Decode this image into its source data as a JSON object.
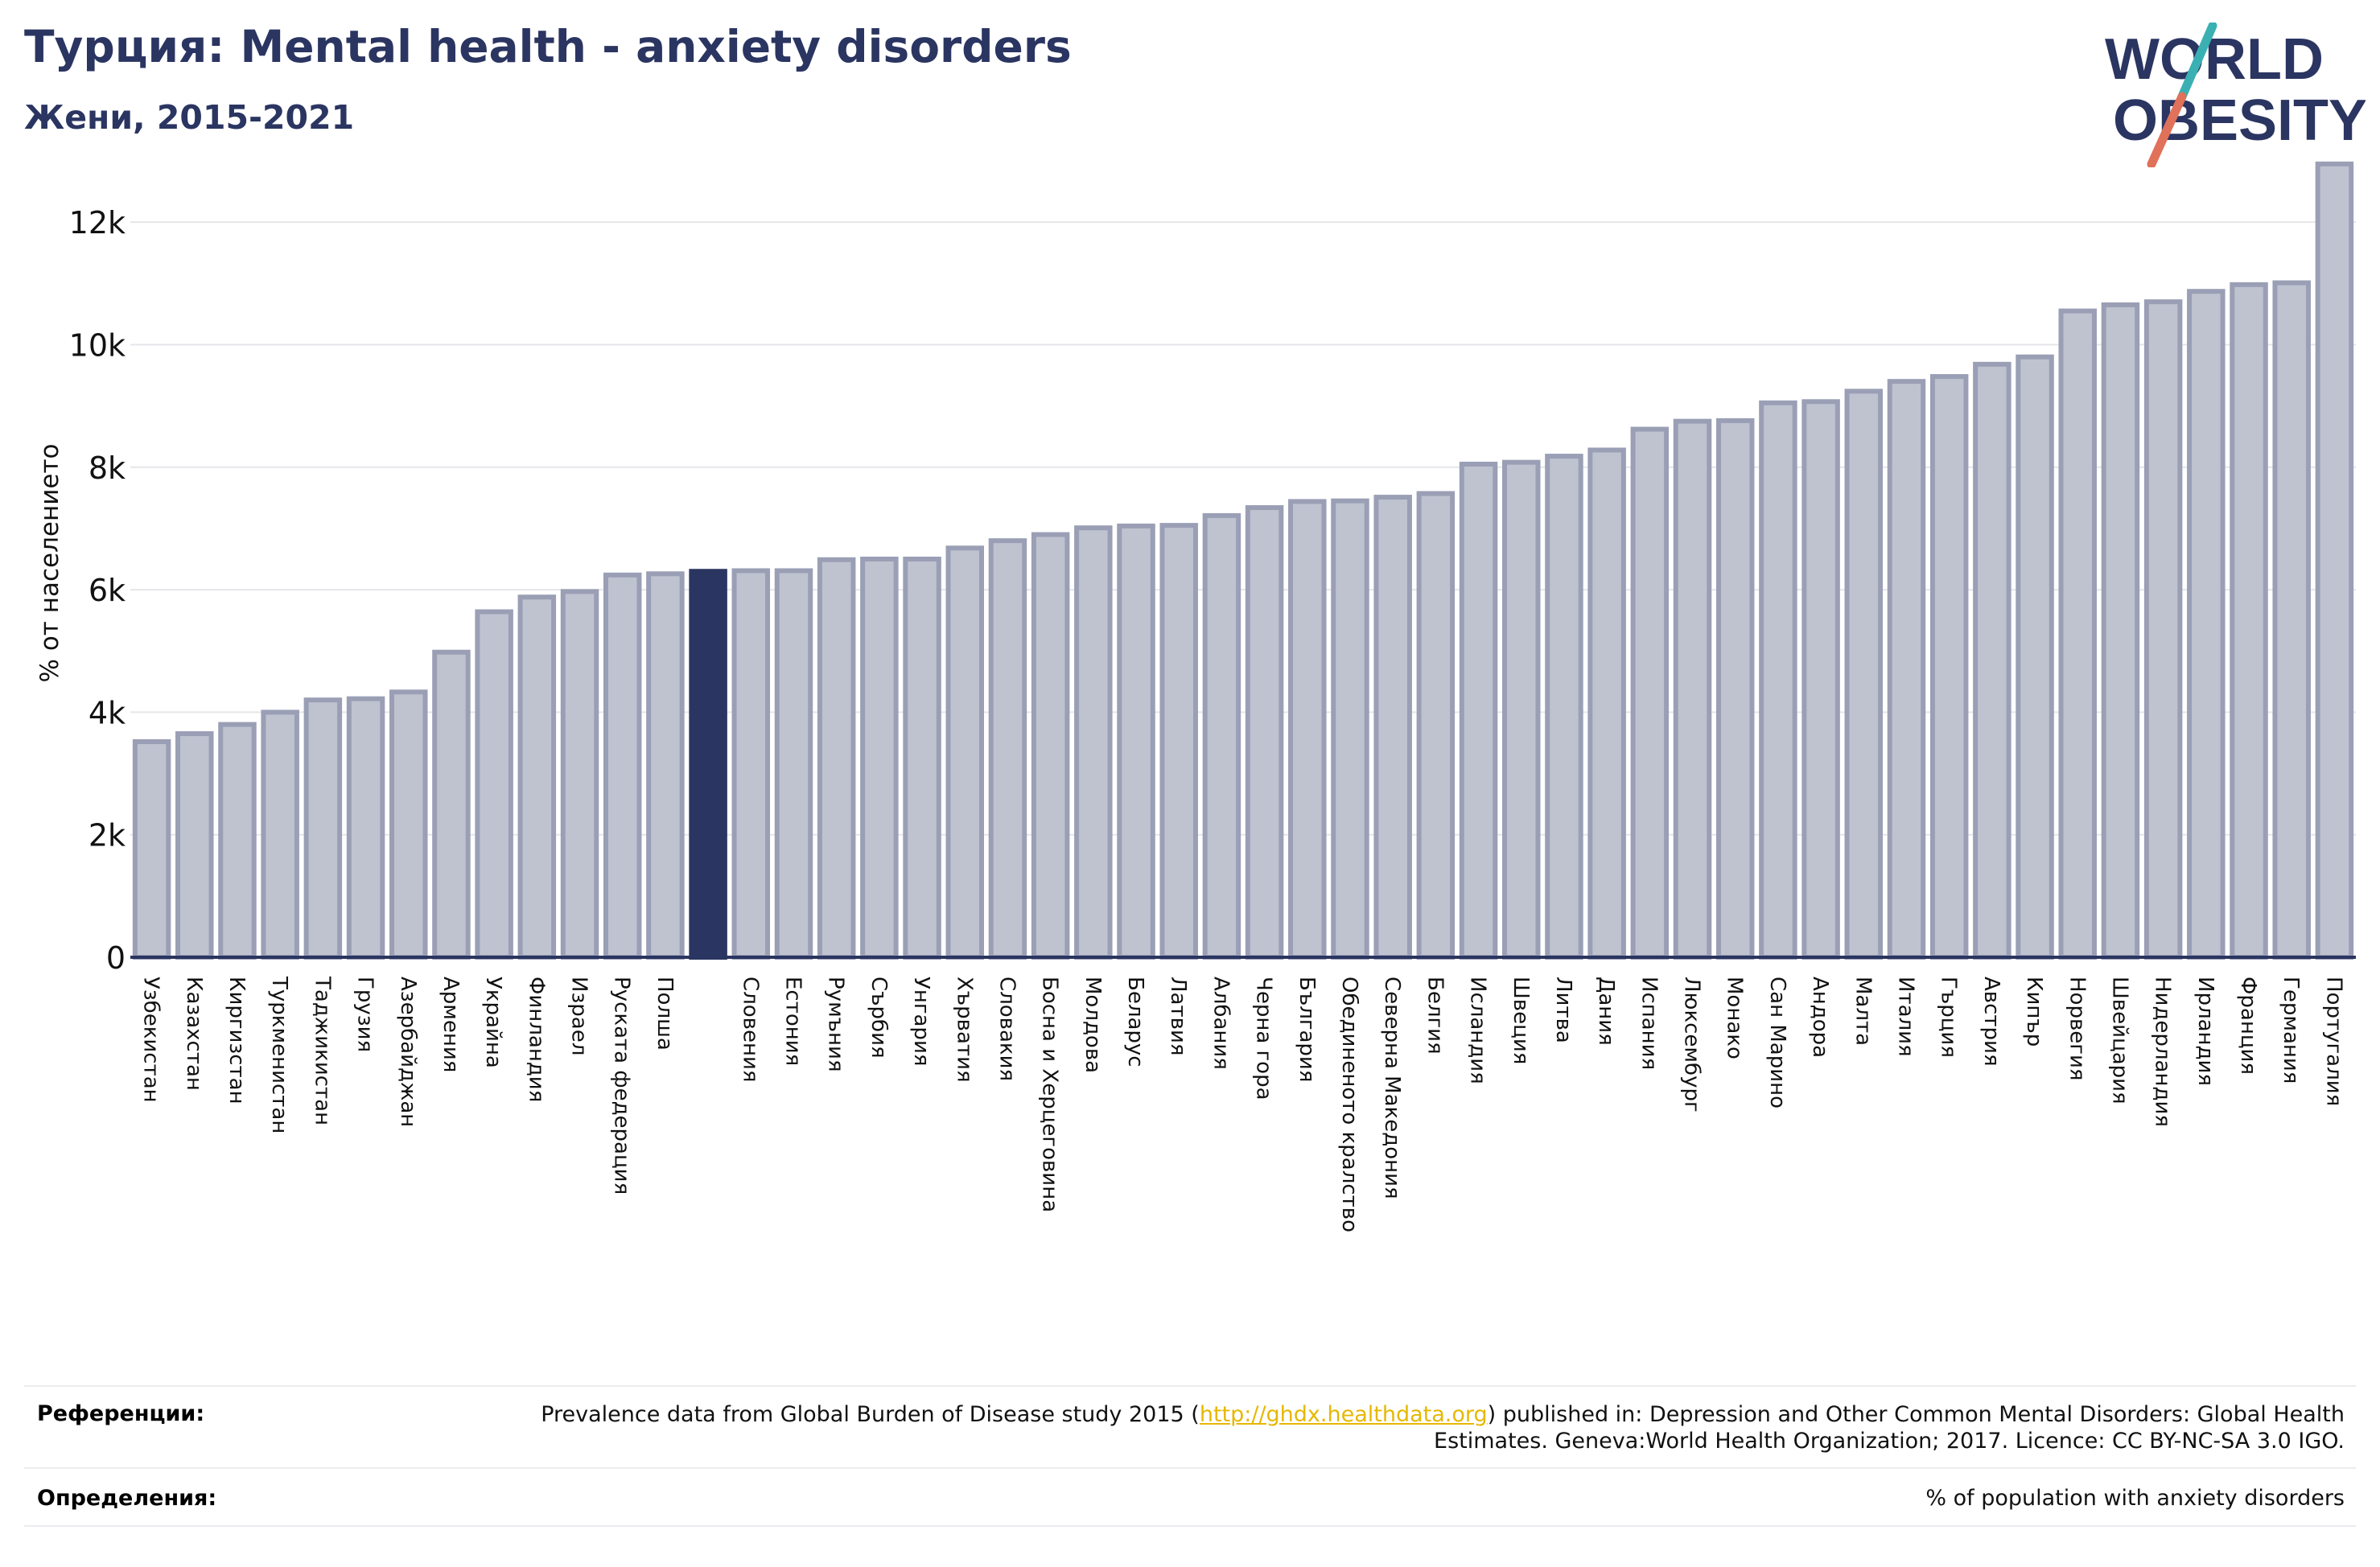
{
  "header": {
    "title": "Турция: Mental health - anxiety disorders",
    "subtitle": "Жени, 2015-2021"
  },
  "logo": {
    "line1": "WORLD",
    "line2": "OBESITY"
  },
  "colors": {
    "bar": "#bfc3d0",
    "bar_border": "#9a9fb5",
    "highlight": "#2b3561",
    "grid": "#e6e6ea",
    "axis": "#2b3561",
    "title": "#2b3561",
    "logo_slash_top": "#3ab0b3",
    "logo_slash_bottom": "#e0715a"
  },
  "chart_data": {
    "type": "bar",
    "ylabel": "% от населението",
    "ylim": [
      0,
      13000
    ],
    "yticks": [
      0,
      2000,
      4000,
      6000,
      8000,
      10000,
      12000
    ],
    "ytick_labels": [
      "0",
      "2k",
      "4k",
      "6k",
      "8k",
      "10k",
      "12k"
    ],
    "grid": true,
    "highlight_index": 13,
    "categories": [
      "Узбекистан",
      "Казахстан",
      "Киргизстан",
      "Туркменистан",
      "Таджикистан",
      "Грузия",
      "Азербайджан",
      "Армения",
      "Украйна",
      "Финландия",
      "Израел",
      "Руската федерация",
      "Полша",
      "",
      "Словения",
      "Естония",
      "Румъния",
      "Сърбия",
      "Унгария",
      "Хърватия",
      "Словакия",
      "Босна и Херцеговина",
      "Молдова",
      "Беларус",
      "Латвия",
      "Албания",
      "Черна гора",
      "България",
      "Обединеното кралство",
      "Северна Македония",
      "Белгия",
      "Исландия",
      "Швеция",
      "Литва",
      "Дания",
      "Испания",
      "Люксембург",
      "Монако",
      "Сан Марино",
      "Андора",
      "Малта",
      "Италия",
      "Гърция",
      "Австрия",
      "Кипър",
      "Норвегия",
      "Швейцария",
      "Нидерландия",
      "Ирландия",
      "Франция",
      "Германия",
      "Португалия"
    ],
    "values": [
      3520,
      3650,
      3800,
      4000,
      4200,
      4220,
      4330,
      4980,
      5640,
      5880,
      5970,
      6240,
      6260,
      6300,
      6310,
      6310,
      6490,
      6500,
      6500,
      6680,
      6800,
      6900,
      7010,
      7040,
      7050,
      7210,
      7340,
      7440,
      7450,
      7510,
      7570,
      8050,
      8080,
      8180,
      8280,
      8620,
      8750,
      8760,
      9050,
      9070,
      9240,
      9400,
      9480,
      9680,
      9800,
      10550,
      10650,
      10700,
      10870,
      10980,
      11010,
      12950
    ]
  },
  "footer": {
    "ref_label": "Референции:",
    "ref_text_pre": "Prevalence data from Global Burden of Disease study 2015 (",
    "ref_link": "http://ghdx.healthdata.org",
    "ref_text_post": ") published in: Depression and Other Common Mental Disorders: Global Health Estimates. Geneva:World Health Organization; 2017. Licence: CC BY-NC-SA 3.0 IGO.",
    "def_label": "Определения:",
    "def_text": "% of population with anxiety disorders"
  }
}
